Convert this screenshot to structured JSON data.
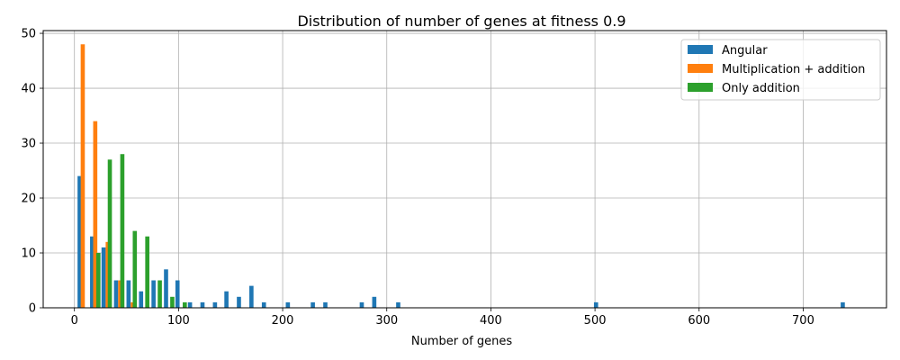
{
  "chart_data": {
    "type": "bar",
    "title": "Distribution of number of genes at fitness 0.9",
    "xlabel": "Number of genes",
    "ylabel": "",
    "xlim": [
      -30,
      780
    ],
    "ylim": [
      0,
      50.5
    ],
    "xticks": [
      0,
      100,
      200,
      300,
      400,
      500,
      600,
      700
    ],
    "yticks": [
      0,
      10,
      20,
      30,
      40,
      50
    ],
    "grid": true,
    "legend_position": "top-right",
    "bin_width": 12,
    "series": [
      {
        "name": "Angular",
        "color": "#1f77b4",
        "bins": [
          {
            "x": 5,
            "value": 24
          },
          {
            "x": 17,
            "value": 13
          },
          {
            "x": 28,
            "value": 11
          },
          {
            "x": 40,
            "value": 5
          },
          {
            "x": 52,
            "value": 5
          },
          {
            "x": 64,
            "value": 3
          },
          {
            "x": 76,
            "value": 5
          },
          {
            "x": 88,
            "value": 7
          },
          {
            "x": 99,
            "value": 5
          },
          {
            "x": 111,
            "value": 1
          },
          {
            "x": 123,
            "value": 1
          },
          {
            "x": 135,
            "value": 1
          },
          {
            "x": 146,
            "value": 3
          },
          {
            "x": 158,
            "value": 2
          },
          {
            "x": 170,
            "value": 4
          },
          {
            "x": 182,
            "value": 1
          },
          {
            "x": 205,
            "value": 1
          },
          {
            "x": 229,
            "value": 1
          },
          {
            "x": 241,
            "value": 1
          },
          {
            "x": 276,
            "value": 1
          },
          {
            "x": 288,
            "value": 2
          },
          {
            "x": 311,
            "value": 1
          },
          {
            "x": 501,
            "value": 1
          },
          {
            "x": 738,
            "value": 1
          }
        ]
      },
      {
        "name": "Multiplication + addition",
        "color": "#ff7f0e",
        "bins": [
          {
            "x": 8,
            "value": 48
          },
          {
            "x": 20,
            "value": 34
          },
          {
            "x": 32,
            "value": 12
          },
          {
            "x": 44,
            "value": 5
          },
          {
            "x": 56,
            "value": 1
          }
        ]
      },
      {
        "name": "Only addition",
        "color": "#2ca02c",
        "bins": [
          {
            "x": 23,
            "value": 10
          },
          {
            "x": 34,
            "value": 27
          },
          {
            "x": 46,
            "value": 28
          },
          {
            "x": 58,
            "value": 14
          },
          {
            "x": 70,
            "value": 13
          },
          {
            "x": 82,
            "value": 5
          },
          {
            "x": 94,
            "value": 2
          },
          {
            "x": 106,
            "value": 1
          }
        ]
      }
    ]
  }
}
